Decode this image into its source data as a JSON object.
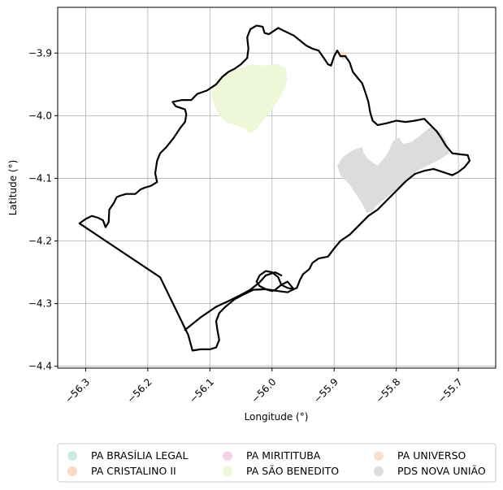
{
  "map": {
    "xlabel": "Longitude (°)",
    "ylabel": "Latitude (°)",
    "xlim": [
      -56.345,
      -55.64
    ],
    "ylim": [
      -4.403,
      -3.827
    ],
    "xticks": [
      {
        "v": -56.3,
        "label": "−56.3"
      },
      {
        "v": -56.2,
        "label": "−56.2"
      },
      {
        "v": -56.1,
        "label": "−56.1"
      },
      {
        "v": -56.0,
        "label": "−56.0"
      },
      {
        "v": -55.9,
        "label": "−55.9"
      },
      {
        "v": -55.8,
        "label": "−55.8"
      },
      {
        "v": -55.7,
        "label": "−55.7"
      }
    ],
    "yticks": [
      {
        "v": -3.9,
        "label": "−3.9"
      },
      {
        "v": -4.0,
        "label": "−4.0"
      },
      {
        "v": -4.1,
        "label": "−4.1"
      },
      {
        "v": -4.2,
        "label": "−4.2"
      },
      {
        "v": -4.3,
        "label": "−4.3"
      },
      {
        "v": -4.4,
        "label": "−4.4"
      }
    ],
    "grid": true,
    "legend_placement": "bottom-center",
    "boundary_color": "#000000",
    "boundary": [
      [
        -56.31,
        -4.172
      ],
      [
        -56.3,
        -4.165
      ],
      [
        -56.29,
        -4.16
      ],
      [
        -56.28,
        -4.163
      ],
      [
        -56.272,
        -4.167
      ],
      [
        -56.268,
        -4.178
      ],
      [
        -56.263,
        -4.17
      ],
      [
        -56.262,
        -4.15
      ],
      [
        -56.255,
        -4.14
      ],
      [
        -56.25,
        -4.13
      ],
      [
        -56.245,
        -4.128
      ],
      [
        -56.235,
        -4.125
      ],
      [
        -56.22,
        -4.125
      ],
      [
        -56.212,
        -4.118
      ],
      [
        -56.205,
        -4.115
      ],
      [
        -56.195,
        -4.112
      ],
      [
        -56.185,
        -4.106
      ],
      [
        -56.188,
        -4.092
      ],
      [
        -56.185,
        -4.072
      ],
      [
        -56.18,
        -4.06
      ],
      [
        -56.17,
        -4.05
      ],
      [
        -56.158,
        -4.035
      ],
      [
        -56.148,
        -4.02
      ],
      [
        -56.14,
        -4.01
      ],
      [
        -56.138,
        -3.998
      ],
      [
        -56.14,
        -3.99
      ],
      [
        -56.155,
        -3.985
      ],
      [
        -56.16,
        -3.978
      ],
      [
        -56.145,
        -3.975
      ],
      [
        -56.13,
        -3.975
      ],
      [
        -56.12,
        -3.965
      ],
      [
        -56.105,
        -3.96
      ],
      [
        -56.09,
        -3.95
      ],
      [
        -56.08,
        -3.938
      ],
      [
        -56.07,
        -3.93
      ],
      [
        -56.06,
        -3.925
      ],
      [
        -56.05,
        -3.918
      ],
      [
        -56.04,
        -3.908
      ],
      [
        -56.038,
        -3.893
      ],
      [
        -56.04,
        -3.875
      ],
      [
        -56.035,
        -3.862
      ],
      [
        -56.025,
        -3.856
      ],
      [
        -56.015,
        -3.858
      ],
      [
        -56.012,
        -3.868
      ],
      [
        -56.005,
        -3.87
      ],
      [
        -55.99,
        -3.86
      ],
      [
        -55.98,
        -3.865
      ],
      [
        -55.965,
        -3.872
      ],
      [
        -55.955,
        -3.88
      ],
      [
        -55.945,
        -3.888
      ],
      [
        -55.935,
        -3.893
      ],
      [
        -55.925,
        -3.896
      ],
      [
        -55.918,
        -3.906
      ],
      [
        -55.91,
        -3.918
      ],
      [
        -55.905,
        -3.92
      ],
      [
        -55.9,
        -3.905
      ],
      [
        -55.895,
        -3.896
      ],
      [
        -55.89,
        -3.905
      ],
      [
        -55.882,
        -3.905
      ],
      [
        -55.875,
        -3.915
      ],
      [
        -55.87,
        -3.93
      ],
      [
        -55.862,
        -3.94
      ],
      [
        -55.855,
        -3.948
      ],
      [
        -55.85,
        -3.962
      ],
      [
        -55.845,
        -3.978
      ],
      [
        -55.842,
        -3.995
      ],
      [
        -55.838,
        -4.008
      ],
      [
        -55.83,
        -4.015
      ],
      [
        -55.815,
        -4.012
      ],
      [
        -55.8,
        -4.008
      ],
      [
        -55.785,
        -4.01
      ],
      [
        -55.77,
        -4.008
      ],
      [
        -55.755,
        -4.005
      ],
      [
        -55.745,
        -4.015
      ],
      [
        -55.735,
        -4.025
      ],
      [
        -55.728,
        -4.035
      ],
      [
        -55.72,
        -4.048
      ],
      [
        -55.71,
        -4.06
      ],
      [
        -55.695,
        -4.062
      ],
      [
        -55.685,
        -4.063
      ],
      [
        -55.682,
        -4.072
      ],
      [
        -55.69,
        -4.082
      ],
      [
        -55.7,
        -4.09
      ],
      [
        -55.71,
        -4.095
      ],
      [
        -55.725,
        -4.09
      ],
      [
        -55.74,
        -4.085
      ],
      [
        -55.755,
        -4.088
      ],
      [
        -55.77,
        -4.093
      ],
      [
        -55.785,
        -4.105
      ],
      [
        -55.8,
        -4.12
      ],
      [
        -55.815,
        -4.135
      ],
      [
        -55.83,
        -4.15
      ],
      [
        -55.845,
        -4.16
      ],
      [
        -55.86,
        -4.175
      ],
      [
        -55.875,
        -4.19
      ],
      [
        -55.89,
        -4.2
      ],
      [
        -55.9,
        -4.212
      ],
      [
        -55.91,
        -4.225
      ],
      [
        -55.925,
        -4.228
      ],
      [
        -55.935,
        -4.235
      ],
      [
        -55.94,
        -4.245
      ],
      [
        -55.95,
        -4.253
      ],
      [
        -55.955,
        -4.262
      ],
      [
        -55.96,
        -4.275
      ],
      [
        -55.965,
        -4.277
      ],
      [
        -55.975,
        -4.265
      ],
      [
        -55.985,
        -4.27
      ],
      [
        -55.995,
        -4.278
      ],
      [
        -56.0,
        -4.28
      ],
      [
        -56.01,
        -4.277
      ],
      [
        -56.02,
        -4.272
      ],
      [
        -56.025,
        -4.265
      ],
      [
        -56.02,
        -4.255
      ],
      [
        -56.01,
        -4.248
      ],
      [
        -56.0,
        -4.25
      ],
      [
        -55.99,
        -4.258
      ],
      [
        -55.985,
        -4.27
      ],
      [
        -55.975,
        -4.275
      ],
      [
        -55.965,
        -4.277
      ],
      [
        -55.975,
        -4.282
      ],
      [
        -55.99,
        -4.28
      ],
      [
        -56.01,
        -4.277
      ],
      [
        -56.03,
        -4.278
      ],
      [
        -56.045,
        -4.285
      ],
      [
        -56.06,
        -4.293
      ],
      [
        -56.075,
        -4.305
      ],
      [
        -56.085,
        -4.315
      ],
      [
        -56.09,
        -4.328
      ],
      [
        -56.088,
        -4.342
      ],
      [
        -56.085,
        -4.358
      ],
      [
        -56.09,
        -4.37
      ],
      [
        -56.1,
        -4.373
      ],
      [
        -56.115,
        -4.373
      ],
      [
        -56.128,
        -4.375
      ],
      [
        -56.135,
        -4.35
      ],
      [
        -56.18,
        -4.258
      ],
      [
        -56.31,
        -4.172
      ]
    ],
    "lower_boundary": [
      [
        -56.14,
        -4.342
      ],
      [
        -56.115,
        -4.322
      ],
      [
        -56.09,
        -4.305
      ],
      [
        -56.07,
        -4.296
      ],
      [
        -56.05,
        -4.286
      ],
      [
        -56.035,
        -4.278
      ],
      [
        -56.02,
        -4.266
      ],
      [
        -56.01,
        -4.255
      ],
      [
        -55.995,
        -4.25
      ],
      [
        -55.985,
        -4.255
      ]
    ],
    "areas": [
      {
        "name": "PA SÃO BENEDITO",
        "color": "#eef7d8",
        "polygon": [
          [
            -56.095,
            -3.955
          ],
          [
            -56.09,
            -3.945
          ],
          [
            -56.08,
            -3.935
          ],
          [
            -56.068,
            -3.93
          ],
          [
            -56.055,
            -3.925
          ],
          [
            -56.04,
            -3.92
          ],
          [
            -56.03,
            -3.918
          ],
          [
            -56.015,
            -3.92
          ],
          [
            -56.0,
            -3.918
          ],
          [
            -55.99,
            -3.918
          ],
          [
            -55.978,
            -3.925
          ],
          [
            -55.975,
            -3.942
          ],
          [
            -55.98,
            -3.958
          ],
          [
            -55.99,
            -3.975
          ],
          [
            -56.0,
            -3.99
          ],
          [
            -56.01,
            -4.003
          ],
          [
            -56.018,
            -4.012
          ],
          [
            -56.025,
            -4.022
          ],
          [
            -56.035,
            -4.028
          ],
          [
            -56.045,
            -4.02
          ],
          [
            -56.06,
            -4.015
          ],
          [
            -56.075,
            -4.01
          ],
          [
            -56.085,
            -4.0
          ],
          [
            -56.092,
            -3.985
          ],
          [
            -56.098,
            -3.97
          ]
        ]
      },
      {
        "name": "PDS NOVA UNIÃO",
        "color": "#dcdcdc",
        "polygon": [
          [
            -55.855,
            -4.05
          ],
          [
            -55.87,
            -4.055
          ],
          [
            -55.885,
            -4.065
          ],
          [
            -55.895,
            -4.08
          ],
          [
            -55.89,
            -4.095
          ],
          [
            -55.875,
            -4.11
          ],
          [
            -55.865,
            -4.125
          ],
          [
            -55.855,
            -4.14
          ],
          [
            -55.848,
            -4.155
          ],
          [
            -55.84,
            -4.153
          ],
          [
            -55.83,
            -4.142
          ],
          [
            -55.815,
            -4.13
          ],
          [
            -55.79,
            -4.11
          ],
          [
            -55.77,
            -4.09
          ],
          [
            -55.75,
            -4.08
          ],
          [
            -55.73,
            -4.07
          ],
          [
            -55.715,
            -4.06
          ],
          [
            -55.72,
            -4.04
          ],
          [
            -55.73,
            -4.025
          ],
          [
            -55.745,
            -4.018
          ],
          [
            -55.76,
            -4.03
          ],
          [
            -55.775,
            -4.042
          ],
          [
            -55.79,
            -4.045
          ],
          [
            -55.795,
            -4.035
          ],
          [
            -55.805,
            -4.04
          ],
          [
            -55.815,
            -4.062
          ],
          [
            -55.83,
            -4.08
          ],
          [
            -55.845,
            -4.07
          ],
          [
            -55.852,
            -4.06
          ]
        ]
      },
      {
        "name": "PA CRISTALINO II",
        "color": "#fcd9c2",
        "polygon": [
          [
            -55.893,
            -3.902
          ],
          [
            -55.888,
            -3.897
          ],
          [
            -55.881,
            -3.9
          ],
          [
            -55.879,
            -3.909
          ],
          [
            -55.886,
            -3.911
          ]
        ]
      }
    ]
  },
  "legend": {
    "items": [
      {
        "name": "PA BRASÍLIA LEGAL",
        "color": "#cdebdc"
      },
      {
        "name": "PA CRISTALINO II",
        "color": "#fcd9c2"
      },
      {
        "name": "PA MIRITITUBA",
        "color": "#f7d2e8"
      },
      {
        "name": "PA SÃO BENEDITO",
        "color": "#eef7d8"
      },
      {
        "name": "PA UNIVERSO",
        "color": "#f8e2cf"
      },
      {
        "name": "PDS NOVA UNIÃO",
        "color": "#dcdcdc"
      }
    ]
  }
}
